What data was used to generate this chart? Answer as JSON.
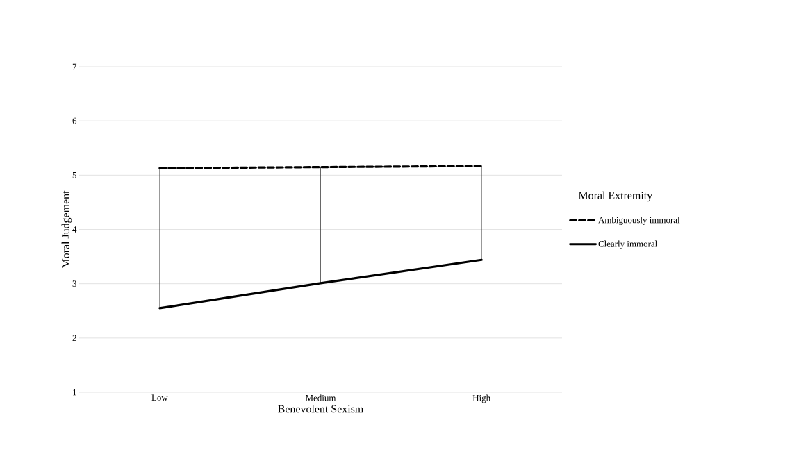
{
  "chart_data": {
    "type": "line",
    "xlabel": "Benevolent Sexism",
    "ylabel": "Moral Judgement",
    "legend_title": "Moral Extremity",
    "categories": [
      "Low",
      "Medium",
      "High"
    ],
    "series": [
      {
        "name": "Ambiguously immoral",
        "color": "#000000",
        "line_style": "dashed",
        "values": [
          5.13,
          5.15,
          5.17
        ]
      },
      {
        "name": "Clearly immoral",
        "color": "#000000",
        "line_style": "solid",
        "values": [
          2.55,
          3.01,
          3.44
        ],
        "errors": [
          [
            2.55,
            5.13
          ],
          [
            3.01,
            5.15
          ],
          [
            3.44,
            5.17
          ]
        ]
      }
    ],
    "ylim": [
      1,
      7
    ],
    "yticks": [
      1,
      2,
      3,
      4,
      5,
      6,
      7
    ],
    "grid": "y",
    "legend": "right"
  }
}
